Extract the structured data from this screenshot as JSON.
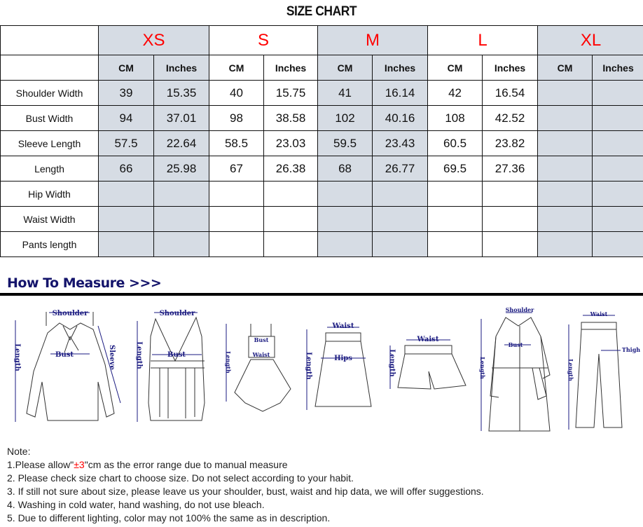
{
  "title": "SIZE CHART",
  "sizes": [
    "XS",
    "S",
    "M",
    "L",
    "XL"
  ],
  "units": [
    "CM",
    "Inches"
  ],
  "shaded_sizes": [
    "XS",
    "M",
    "XL"
  ],
  "colors": {
    "size_label": "#ff0000",
    "shade": "#d6dce4",
    "heading": "#14146b",
    "label_text": "#1a1a80"
  },
  "rows": [
    {
      "label": "Shoulder Width",
      "values": [
        "39",
        "15.35",
        "40",
        "15.75",
        "41",
        "16.14",
        "42",
        "16.54",
        "",
        ""
      ]
    },
    {
      "label": "Bust Width",
      "values": [
        "94",
        "37.01",
        "98",
        "38.58",
        "102",
        "40.16",
        "108",
        "42.52",
        "",
        ""
      ]
    },
    {
      "label": "Sleeve Length",
      "values": [
        "57.5",
        "22.64",
        "58.5",
        "23.03",
        "59.5",
        "23.43",
        "60.5",
        "23.82",
        "",
        ""
      ]
    },
    {
      "label": "Length",
      "values": [
        "66",
        "25.98",
        "67",
        "26.38",
        "68",
        "26.77",
        "69.5",
        "27.36",
        "",
        ""
      ]
    },
    {
      "label": "Hip Width",
      "values": [
        "",
        "",
        "",
        "",
        "",
        "",
        "",
        "",
        "",
        ""
      ]
    },
    {
      "label": "Waist Width",
      "values": [
        "",
        "",
        "",
        "",
        "",
        "",
        "",
        "",
        "",
        ""
      ]
    },
    {
      "label": "Pants length",
      "values": [
        "",
        "",
        "",
        "",
        "",
        "",
        "",
        "",
        "",
        ""
      ]
    }
  ],
  "how_to_measure": "How To Measure >>>",
  "diagram_labels": {
    "shoulder": "Shoulder",
    "bust": "Bust",
    "sleeve": "Sleeve",
    "length": "Length",
    "waist": "Waist",
    "hips": "Hips",
    "thigh": "Thigh"
  },
  "notes": {
    "heading": "Note:",
    "n1_pre": "1.Please allow\"",
    "n1_red": "±3",
    "n1_post": "\"cm as the error range due to manual measure",
    "n2": "2. Please check size chart to choose size. Do not select according to your habit.",
    "n3": "3. If still not sure about size, please leave us your shoulder, bust, waist and hip data, we will offer suggestions.",
    "n4": "4. Washing in cold water, hand washing, do not use bleach.",
    "n5": "5. Due to different lighting, color may not 100% the same as in description."
  }
}
